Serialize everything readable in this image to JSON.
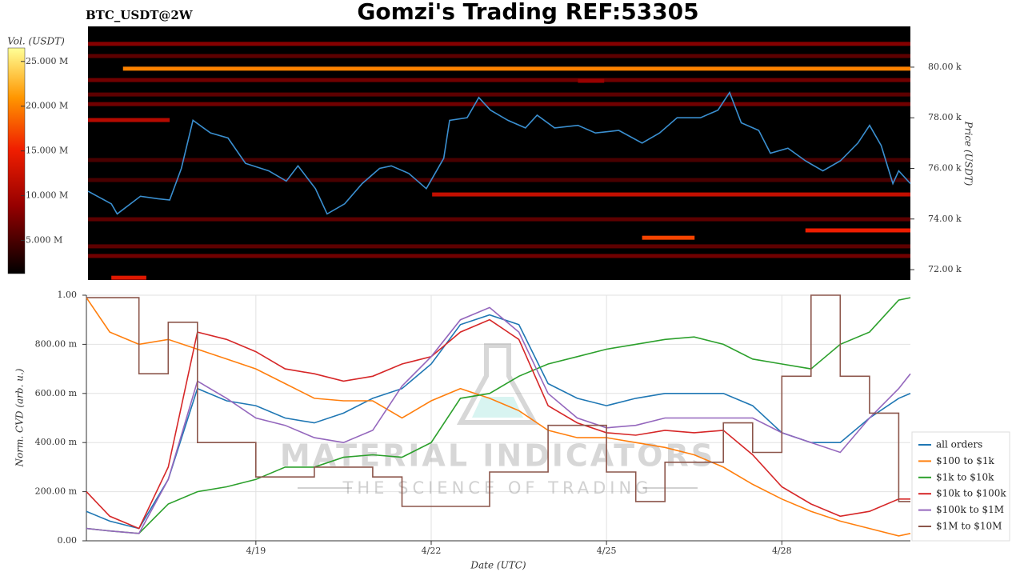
{
  "chart_data": [
    {
      "type": "heatmap",
      "title": "Gomzi's Trading REF:53305",
      "subtitle": "BTC_USDT@2W",
      "ylabel": "Price (USDT)",
      "xlim": [
        16.1,
        30.2
      ],
      "ylim": [
        71590,
        81610
      ],
      "yticks": [
        {
          "value": 72000,
          "label": "72.00 k"
        },
        {
          "value": 74000,
          "label": "74.00 k"
        },
        {
          "value": 76000,
          "label": "76.00 k"
        },
        {
          "value": 78000,
          "label": "78.00 k"
        },
        {
          "value": 80000,
          "label": "80.00 k"
        }
      ],
      "colorbar": {
        "label": "Vol. (USDT)",
        "lim": [
          1300000,
          26500000
        ],
        "ticks": [
          {
            "value": 5000000,
            "label": "5.000 M"
          },
          {
            "value": 10000000,
            "label": "10.000 M"
          },
          {
            "value": 15000000,
            "label": "15.000 M"
          },
          {
            "value": 20000000,
            "label": "20.000 M"
          },
          {
            "value": 25000000,
            "label": "25.000 M"
          }
        ]
      },
      "bands": {
        "price": [
          80920,
          80440,
          79940,
          79490,
          79460,
          78920,
          78540,
          77910,
          76330,
          75540,
          74970,
          73990,
          73550,
          73260,
          72920,
          72540,
          71680
        ],
        "volume": [
          8000000,
          6000000,
          20000000,
          7000000,
          9000000,
          6000000,
          7000000,
          11000000,
          5000000,
          5000000,
          12000000,
          6000000,
          15000000,
          17000000,
          6000000,
          7000000,
          14000000
        ],
        "start": [
          16.1,
          16.1,
          16.7,
          16.1,
          24.5,
          16.1,
          16.1,
          16.1,
          16.1,
          16.1,
          22.0,
          16.1,
          28.4,
          25.6,
          16.1,
          16.1,
          16.5
        ],
        "end": [
          30.2,
          30.2,
          30.2,
          30.2,
          24.95,
          30.2,
          30.2,
          17.5,
          30.2,
          30.2,
          30.2,
          30.2,
          30.2,
          26.5,
          30.2,
          30.2,
          17.1
        ]
      },
      "series": [
        {
          "name": "Price",
          "color": "#3a8fd0",
          "x": [
            16.1,
            16.5,
            16.6,
            17.0,
            17.3,
            17.5,
            17.7,
            17.9,
            18.2,
            18.5,
            18.8,
            19.2,
            19.5,
            19.7,
            20.0,
            20.2,
            20.5,
            20.8,
            21.1,
            21.3,
            21.6,
            21.9,
            22.2,
            22.3,
            22.6,
            22.8,
            23.0,
            23.3,
            23.6,
            23.8,
            24.1,
            24.5,
            24.8,
            25.2,
            25.6,
            25.9,
            26.2,
            26.6,
            26.9,
            27.1,
            27.3,
            27.6,
            27.8,
            28.1,
            28.4,
            28.7,
            29.0,
            29.3,
            29.5,
            29.7,
            29.9,
            30.0,
            30.2
          ],
          "values": [
            75100,
            74600,
            74200,
            74900,
            74800,
            74750,
            76000,
            77900,
            77400,
            77200,
            76200,
            75900,
            75500,
            76100,
            75200,
            74200,
            74600,
            75400,
            76000,
            76100,
            75800,
            75200,
            76400,
            77900,
            78000,
            78800,
            78300,
            77900,
            77600,
            78100,
            77600,
            77700,
            77400,
            77500,
            77000,
            77400,
            78000,
            78000,
            78300,
            79000,
            77800,
            77500,
            76600,
            76800,
            76300,
            75900,
            76300,
            77000,
            77700,
            76900,
            75400,
            75900,
            75400
          ]
        }
      ]
    },
    {
      "type": "line",
      "xlabel": "Date (UTC)",
      "ylabel": "Norm. CVD (arb. u.)",
      "watermark": [
        "MATERIAL INDICATORS",
        "THE SCIENCE OF TRADING"
      ],
      "xlim": [
        16.1,
        30.2
      ],
      "ylim": [
        0,
        1
      ],
      "xticks": [
        {
          "value": 19,
          "label": "4/19"
        },
        {
          "value": 22,
          "label": "4/22"
        },
        {
          "value": 25,
          "label": "4/25"
        },
        {
          "value": 28,
          "label": "4/28"
        }
      ],
      "yticks": [
        {
          "value": 0,
          "label": "0.00"
        },
        {
          "value": 0.2,
          "label": "200.00 m"
        },
        {
          "value": 0.4,
          "label": "400.00 m"
        },
        {
          "value": 0.6,
          "label": "600.00 m"
        },
        {
          "value": 0.8,
          "label": "800.00 m"
        },
        {
          "value": 1,
          "label": "1.00"
        }
      ],
      "grid": true,
      "legend": "lower right",
      "x": [
        16.1,
        16.5,
        17,
        17.5,
        18,
        18.5,
        19,
        19.5,
        20,
        20.5,
        21,
        21.5,
        22,
        22.5,
        23,
        23.5,
        24,
        24.5,
        25,
        25.5,
        26,
        26.5,
        27,
        27.5,
        28,
        28.5,
        29,
        29.5,
        30,
        30.2
      ],
      "series": [
        {
          "name": "all orders",
          "color": "#1f77b4",
          "values": [
            0.12,
            0.08,
            0.05,
            0.25,
            0.62,
            0.57,
            0.55,
            0.5,
            0.48,
            0.52,
            0.58,
            0.62,
            0.72,
            0.88,
            0.92,
            0.88,
            0.64,
            0.58,
            0.55,
            0.58,
            0.6,
            0.6,
            0.6,
            0.55,
            0.44,
            0.4,
            0.4,
            0.5,
            0.58,
            0.6
          ]
        },
        {
          "name": "$100 to $1k",
          "color": "#ff7f0e",
          "values": [
            0.99,
            0.85,
            0.8,
            0.82,
            0.78,
            0.74,
            0.7,
            0.64,
            0.58,
            0.57,
            0.57,
            0.5,
            0.57,
            0.62,
            0.58,
            0.53,
            0.45,
            0.42,
            0.42,
            0.4,
            0.38,
            0.35,
            0.3,
            0.23,
            0.17,
            0.12,
            0.08,
            0.05,
            0.02,
            0.03
          ]
        },
        {
          "name": "$1k to $10k",
          "color": "#2ca02c",
          "values": [
            0.05,
            0.04,
            0.03,
            0.15,
            0.2,
            0.22,
            0.25,
            0.3,
            0.3,
            0.34,
            0.35,
            0.34,
            0.4,
            0.58,
            0.6,
            0.67,
            0.72,
            0.75,
            0.78,
            0.8,
            0.82,
            0.83,
            0.8,
            0.74,
            0.72,
            0.7,
            0.8,
            0.85,
            0.98,
            0.99
          ]
        },
        {
          "name": "$10k to $100k",
          "color": "#d62728",
          "values": [
            0.2,
            0.1,
            0.05,
            0.3,
            0.85,
            0.82,
            0.77,
            0.7,
            0.68,
            0.65,
            0.67,
            0.72,
            0.75,
            0.85,
            0.9,
            0.82,
            0.55,
            0.48,
            0.44,
            0.43,
            0.45,
            0.44,
            0.45,
            0.35,
            0.22,
            0.15,
            0.1,
            0.12,
            0.17,
            0.17
          ]
        },
        {
          "name": "$100k to $1M",
          "color": "#9467bd",
          "values": [
            0.05,
            0.04,
            0.03,
            0.25,
            0.65,
            0.58,
            0.5,
            0.47,
            0.42,
            0.4,
            0.45,
            0.63,
            0.75,
            0.9,
            0.95,
            0.85,
            0.6,
            0.5,
            0.46,
            0.47,
            0.5,
            0.5,
            0.5,
            0.5,
            0.44,
            0.4,
            0.36,
            0.5,
            0.62,
            0.68
          ]
        },
        {
          "name": "$1M to $10M",
          "color": "#8c564b",
          "step": true,
          "values": [
            0.99,
            0.99,
            0.68,
            0.89,
            0.4,
            0.4,
            0.26,
            0.26,
            0.3,
            0.3,
            0.26,
            0.14,
            0.14,
            0.14,
            0.28,
            0.28,
            0.47,
            0.47,
            0.28,
            0.16,
            0.32,
            0.32,
            0.48,
            0.36,
            0.67,
            1.0,
            0.67,
            0.52,
            0.16,
            0.16
          ]
        }
      ]
    }
  ]
}
